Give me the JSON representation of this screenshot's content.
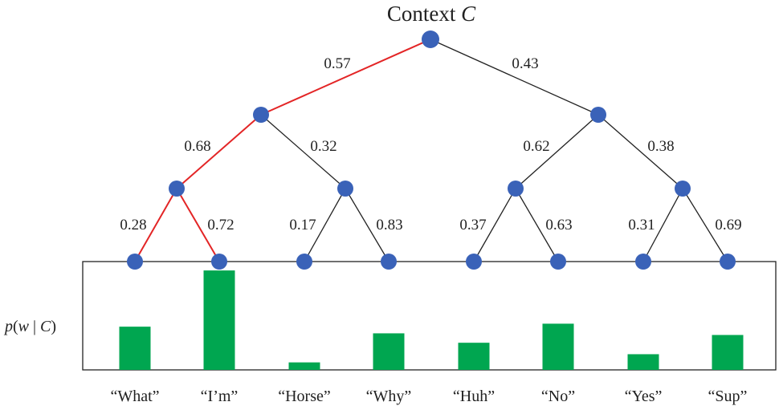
{
  "title": {
    "prefix": "Context ",
    "var": "C"
  },
  "ylabel": {
    "p": "p",
    "open": "(",
    "w": "w",
    "bar": " | ",
    "c": "C",
    "close": ")"
  },
  "edge_labels": {
    "root_left": "0.57",
    "root_right": "0.43",
    "l1_left": "0.68",
    "l1_right": "0.32",
    "r1_left": "0.62",
    "r1_right": "0.38",
    "ll_left": "0.28",
    "ll_right": "0.72",
    "lr_left": "0.17",
    "lr_right": "0.83",
    "rl_left": "0.37",
    "rl_right": "0.63",
    "rr_left": "0.31",
    "rr_right": "0.69"
  },
  "colors": {
    "node": "#3a62b8",
    "highlight_edge": "#e32526",
    "normal_edge": "#222222",
    "bar": "#00a650"
  },
  "chart_data": {
    "type": "bar",
    "categories": [
      "“What”",
      "“I’m”",
      "“Horse”",
      "“Why”",
      "“Huh”",
      "“No”",
      "“Yes”",
      "“Sup”"
    ],
    "values": [
      0.1596,
      0.3672,
      0.0277,
      0.135,
      0.1002,
      0.1706,
      0.0579,
      0.1289
    ],
    "ylim": [
      0,
      0.4
    ]
  }
}
